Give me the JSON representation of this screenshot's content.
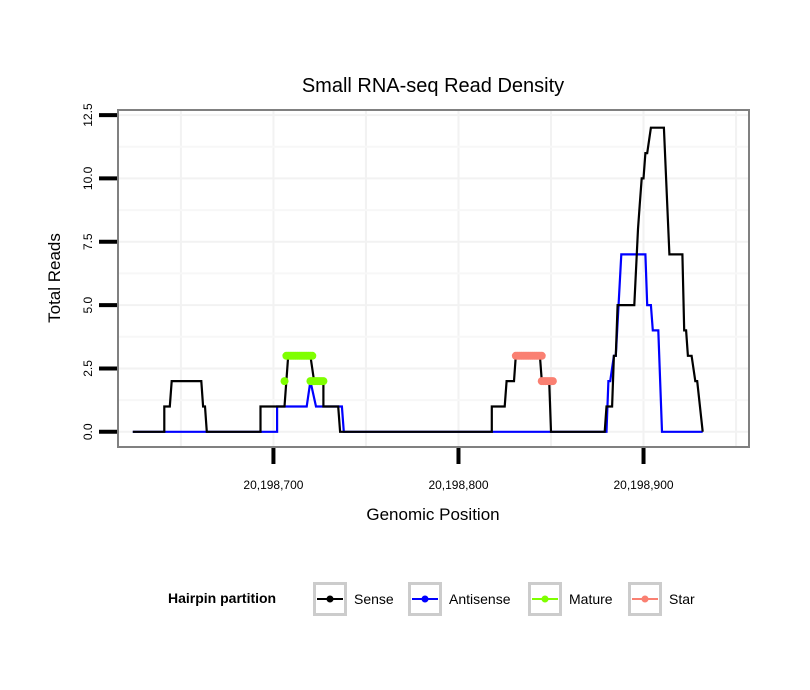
{
  "chart_data": {
    "type": "line",
    "title": "Small RNA-seq Read Density",
    "xlabel": "Genomic Position",
    "ylabel": "Total Reads",
    "xlim": [
      20198616,
      20198957
    ],
    "ylim": [
      -0.6,
      12.7
    ],
    "x_ticks": [
      20198700,
      20198800,
      20198900
    ],
    "x_tick_labels": [
      "20,198,700",
      "20,198,800",
      "20,198,900"
    ],
    "x_minor_gridlines": [
      20198650,
      20198750,
      20198850,
      20198950
    ],
    "y_ticks": [
      0,
      2.5,
      5,
      7.5,
      10,
      12.5
    ],
    "y_tick_labels": [
      "0.0",
      "2.5",
      "5.0",
      "7.5",
      "10.0",
      "12.5"
    ],
    "grid": true,
    "legend": {
      "title": "Hairpin partition",
      "placement": "bottom",
      "entries": [
        {
          "label": "Sense",
          "color": "#000000"
        },
        {
          "label": "Antisense",
          "color": "#0000ff"
        },
        {
          "label": "Mature",
          "color": "#7fff00"
        },
        {
          "label": "Star",
          "color": "#fa8072"
        }
      ]
    },
    "series": [
      {
        "name": "Sense",
        "color": "#000000",
        "style": "step",
        "points": [
          [
            20198624,
            0
          ],
          [
            20198641,
            0
          ],
          [
            20198641,
            1
          ],
          [
            20198644,
            1
          ],
          [
            20198645,
            2
          ],
          [
            20198661,
            2
          ],
          [
            20198662,
            1
          ],
          [
            20198663,
            1
          ],
          [
            20198664,
            0
          ],
          [
            20198693,
            0
          ],
          [
            20198693,
            1
          ],
          [
            20198706,
            1
          ],
          [
            20198708,
            3
          ],
          [
            20198720,
            3
          ],
          [
            20198722,
            2
          ],
          [
            20198727,
            2
          ],
          [
            20198727,
            1
          ],
          [
            20198735,
            1
          ],
          [
            20198736,
            0
          ],
          [
            20198818,
            0
          ],
          [
            20198818,
            1
          ],
          [
            20198825,
            1
          ],
          [
            20198826,
            2
          ],
          [
            20198830,
            2
          ],
          [
            20198831,
            3
          ],
          [
            20198844,
            3
          ],
          [
            20198845,
            2
          ],
          [
            20198849,
            2
          ],
          [
            20198850,
            0
          ],
          [
            20198879,
            0
          ],
          [
            20198880,
            1
          ],
          [
            20198883,
            1
          ],
          [
            20198884,
            3
          ],
          [
            20198885,
            3
          ],
          [
            20198886,
            5
          ],
          [
            20198895,
            5
          ],
          [
            20198897,
            8
          ],
          [
            20198898,
            9
          ],
          [
            20198899,
            10
          ],
          [
            20198900,
            10
          ],
          [
            20198901,
            11
          ],
          [
            20198902,
            11
          ],
          [
            20198904,
            12
          ],
          [
            20198911,
            12
          ],
          [
            20198914,
            7
          ],
          [
            20198921,
            7
          ],
          [
            20198922,
            4
          ],
          [
            20198923,
            4
          ],
          [
            20198924,
            3
          ],
          [
            20198926,
            3
          ],
          [
            20198928,
            2
          ],
          [
            20198929,
            2
          ],
          [
            20198932,
            0
          ]
        ]
      },
      {
        "name": "Antisense",
        "color": "#0000ff",
        "style": "step",
        "points": [
          [
            20198624,
            0
          ],
          [
            20198702,
            0
          ],
          [
            20198702,
            1
          ],
          [
            20198718,
            1
          ],
          [
            20198720,
            2
          ],
          [
            20198720,
            2
          ],
          [
            20198723,
            1
          ],
          [
            20198737,
            1
          ],
          [
            20198738,
            0
          ],
          [
            20198880,
            0
          ],
          [
            20198881,
            2
          ],
          [
            20198882,
            2
          ],
          [
            20198884,
            3
          ],
          [
            20198885,
            3
          ],
          [
            20198888,
            7
          ],
          [
            20198901,
            7
          ],
          [
            20198902,
            5
          ],
          [
            20198904,
            5
          ],
          [
            20198905,
            4
          ],
          [
            20198908,
            4
          ],
          [
            20198910,
            0
          ],
          [
            20198932,
            0
          ]
        ]
      },
      {
        "name": "Mature",
        "color": "#7fff00",
        "style": "points",
        "segments": [
          {
            "y": 3,
            "x": [
              20198707,
              20198721
            ]
          },
          {
            "y": 2,
            "x": [
              20198706,
              20198706
            ]
          },
          {
            "y": 2,
            "x": [
              20198720,
              20198727
            ]
          }
        ]
      },
      {
        "name": "Star",
        "color": "#fa8072",
        "style": "points",
        "segments": [
          {
            "y": 3,
            "x": [
              20198831,
              20198845
            ]
          },
          {
            "y": 2,
            "x": [
              20198845,
              20198851
            ]
          }
        ]
      }
    ]
  }
}
